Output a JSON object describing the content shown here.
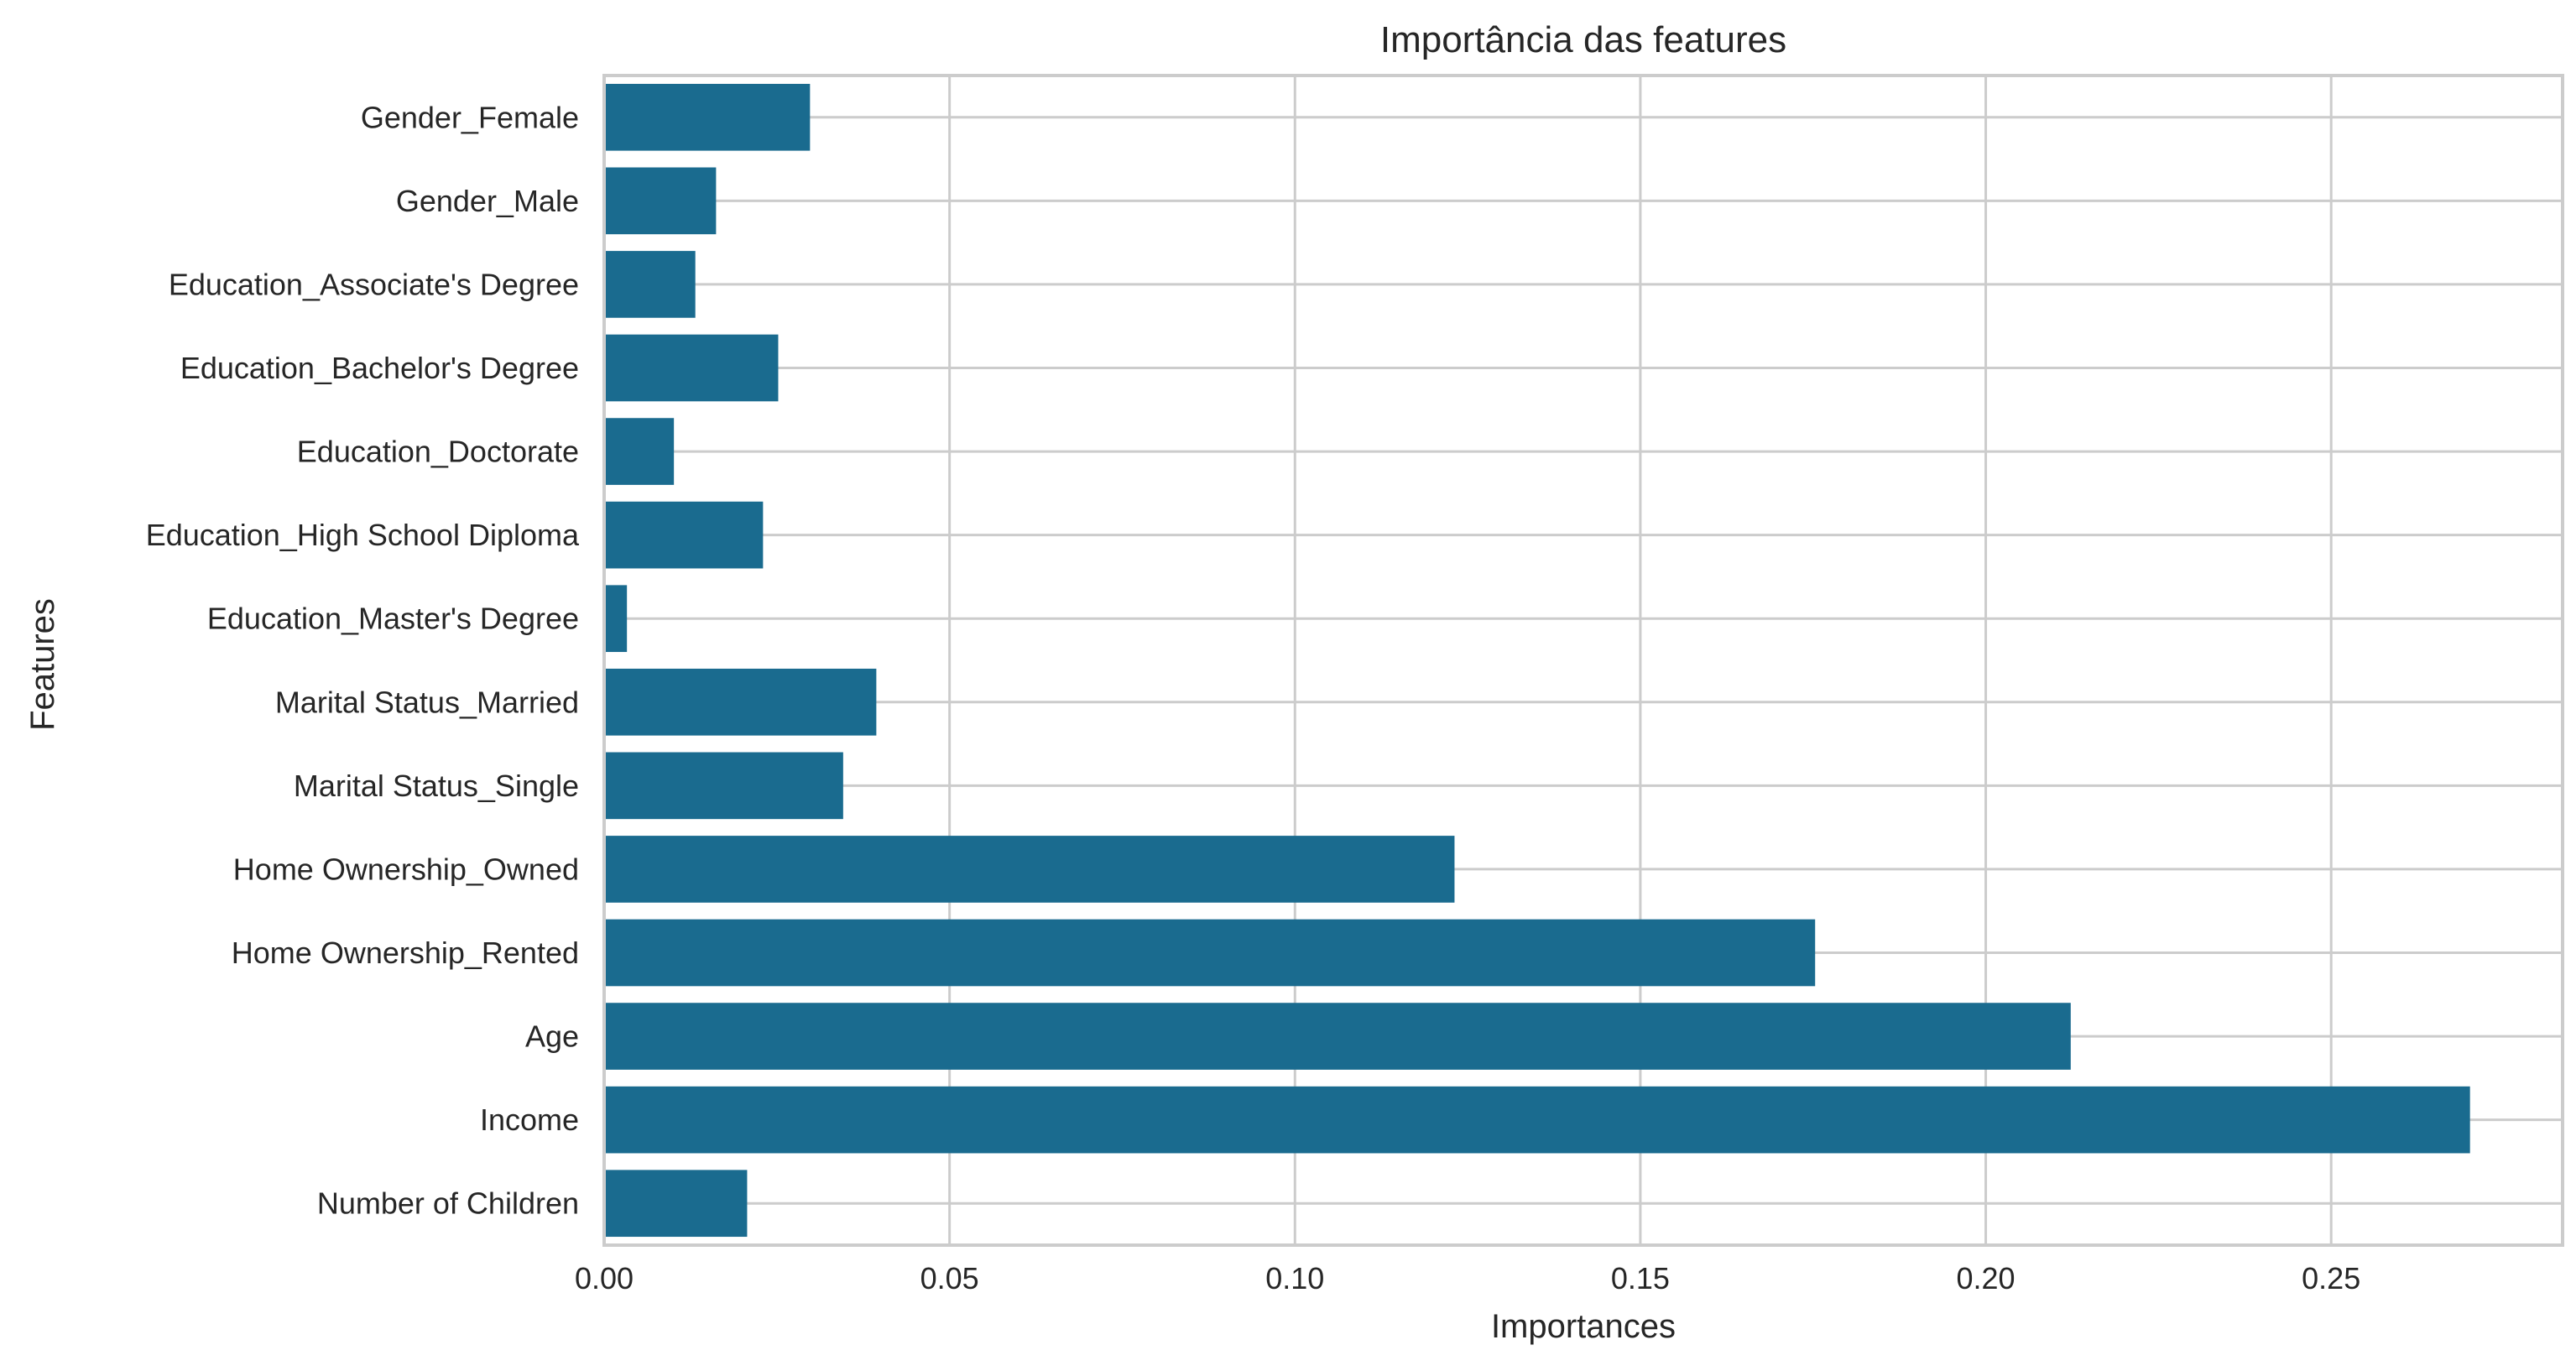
{
  "chart_data": {
    "type": "bar",
    "orientation": "horizontal",
    "title": "Importância das features",
    "xlabel": "Importances",
    "ylabel": "Features",
    "categories": [
      "Gender_Female",
      "Gender_Male",
      "Education_Associate's Degree",
      "Education_Bachelor's Degree",
      "Education_Doctorate",
      "Education_High School Diploma",
      "Education_Master's Degree",
      "Marital Status_Married",
      "Marital Status_Single",
      "Home Ownership_Owned",
      "Home Ownership_Rented",
      "Age",
      "Income",
      "Number of Children"
    ],
    "values": [
      0.0298,
      0.0162,
      0.0132,
      0.0252,
      0.0101,
      0.023,
      0.0033,
      0.0394,
      0.0346,
      0.1231,
      0.1753,
      0.2123,
      0.2701,
      0.0207
    ],
    "xlim": [
      0,
      0.2835
    ],
    "xticks": [
      0.0,
      0.05,
      0.1,
      0.15,
      0.2,
      0.25
    ],
    "xtick_labels": [
      "0.00",
      "0.05",
      "0.10",
      "0.15",
      "0.20",
      "0.25"
    ],
    "grid": true,
    "bar_color": "#1a6b8f",
    "grid_color": "#cccccc",
    "text_color": "#262626"
  }
}
